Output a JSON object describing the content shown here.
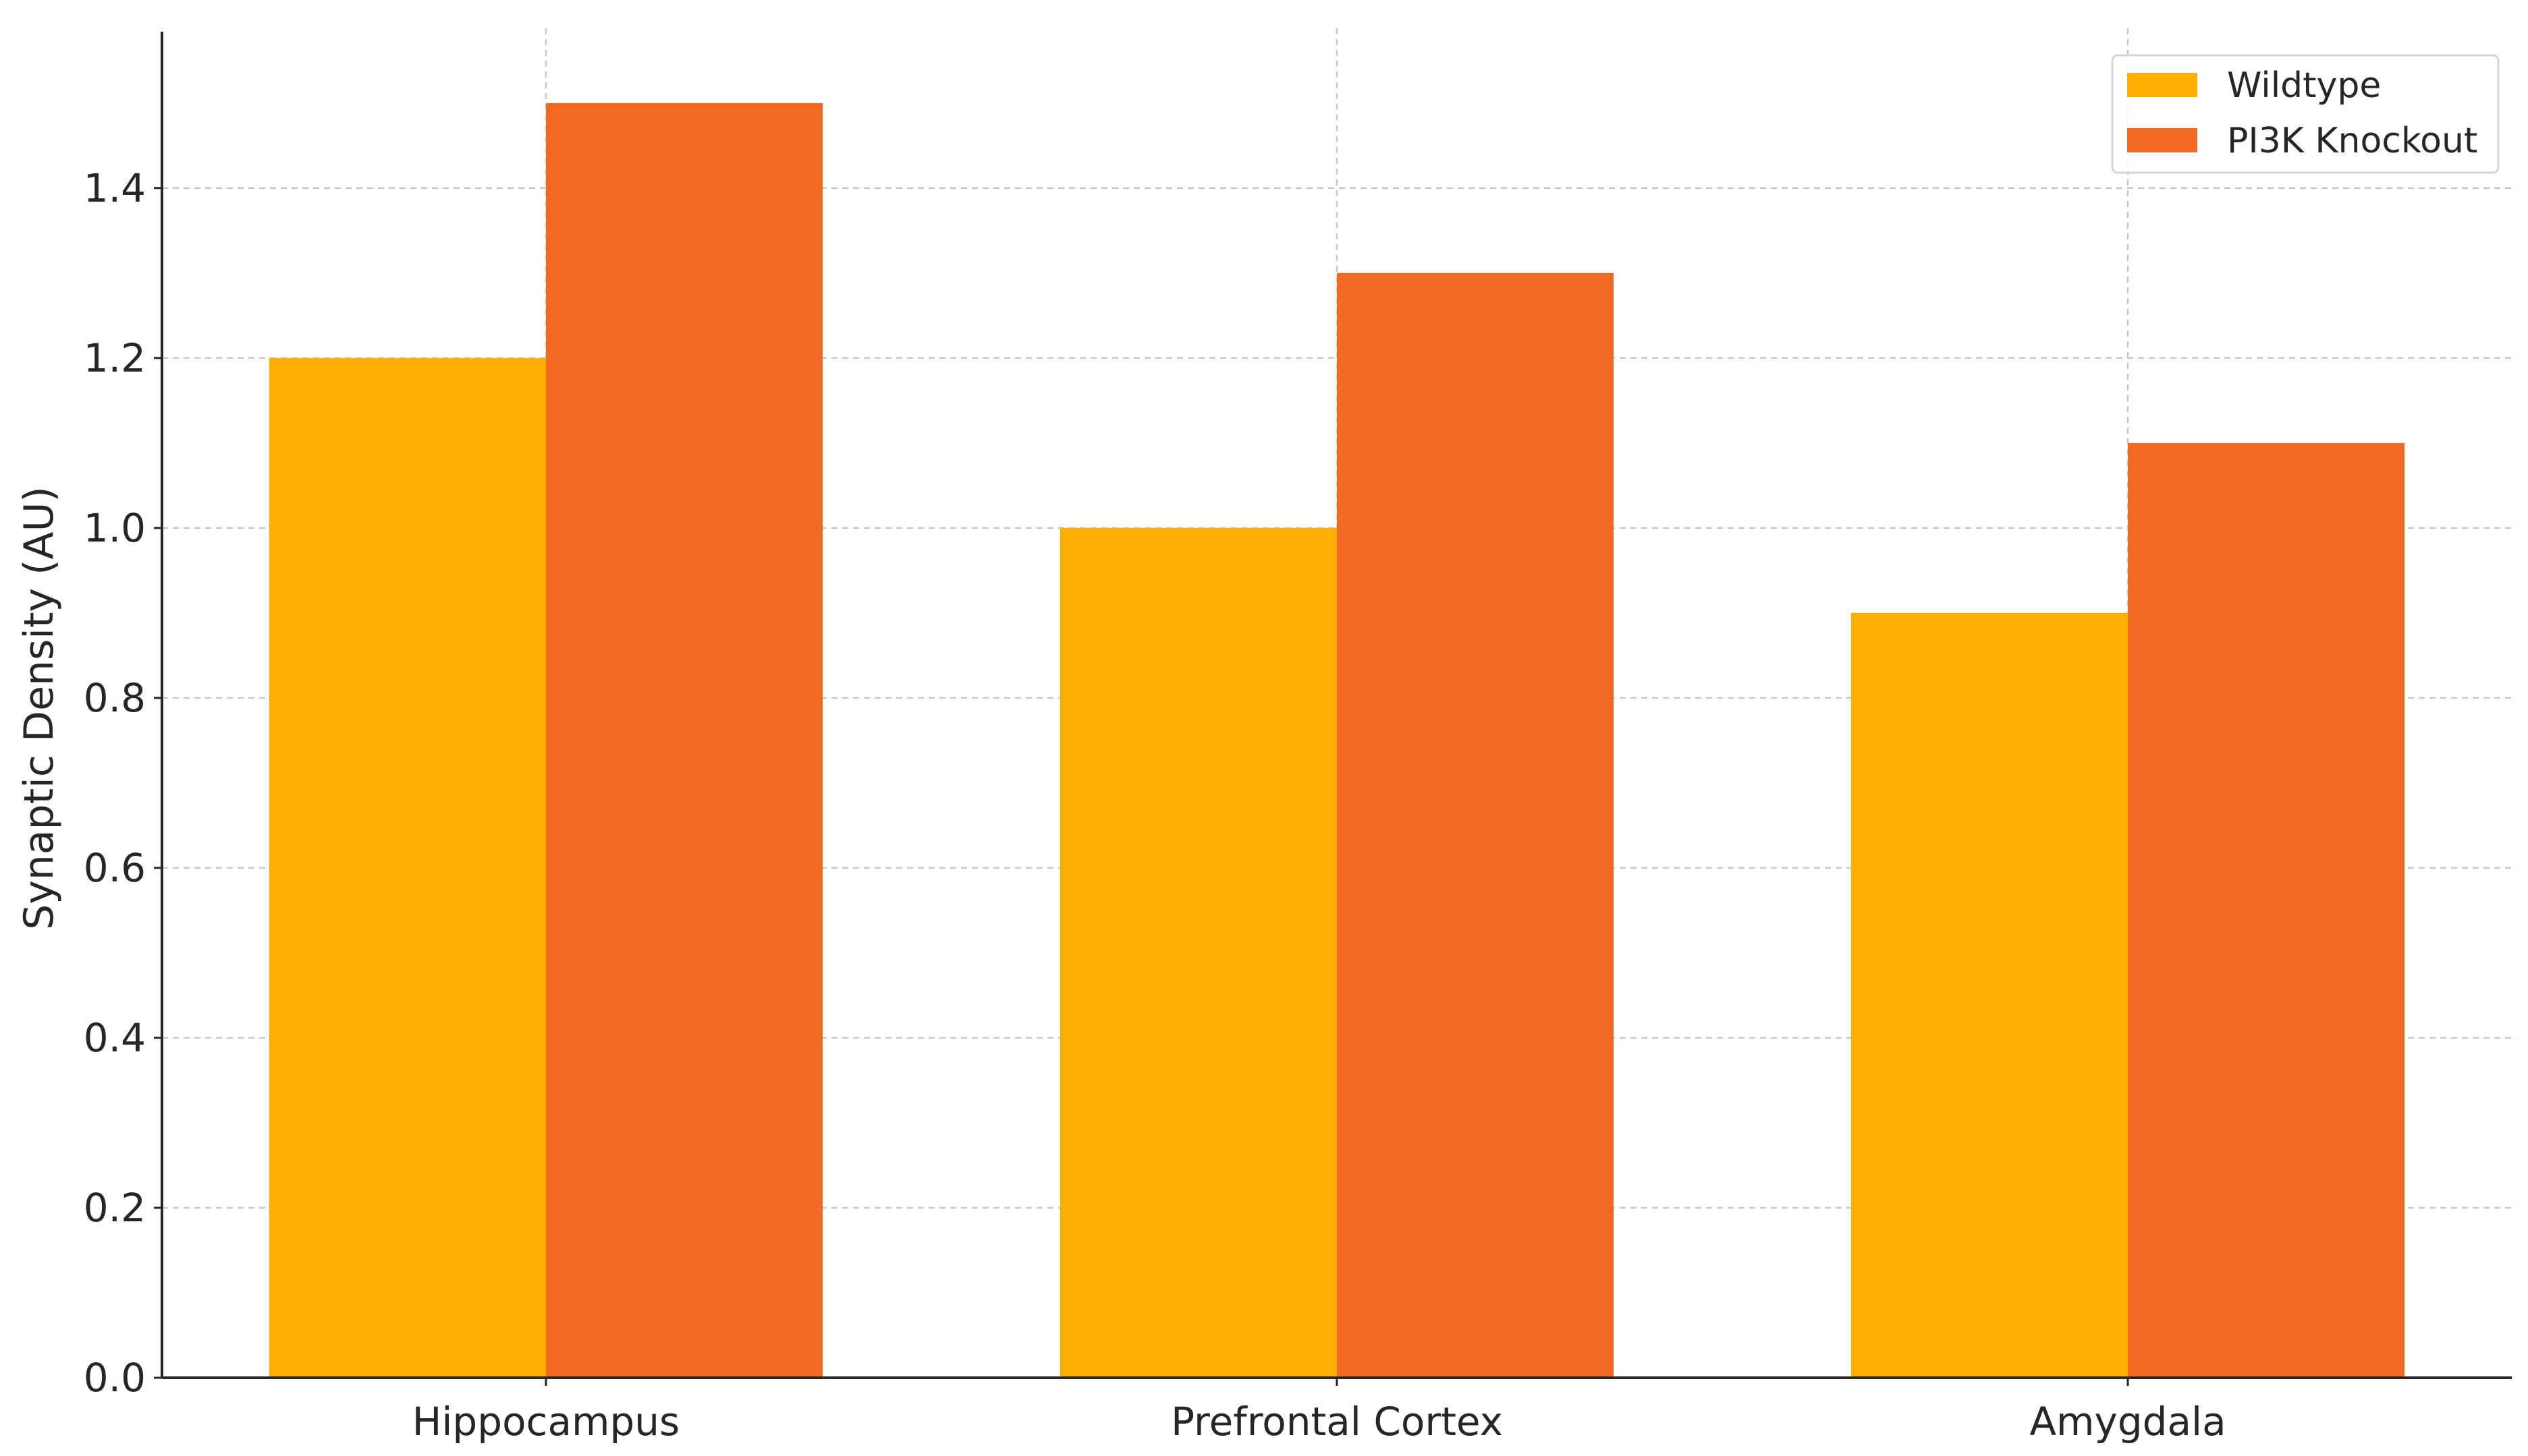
{
  "chart_data": {
    "type": "bar",
    "title": "",
    "xlabel": "",
    "ylabel": "Synaptic Density (AU)",
    "categories": [
      "Hippocampus",
      "Prefrontal Cortex",
      "Amygdala"
    ],
    "series": [
      {
        "name": "Wildtype",
        "values": [
          1.2,
          1.0,
          0.9
        ],
        "color": "#FCAE03"
      },
      {
        "name": "PI3K Knockout",
        "values": [
          1.5,
          1.3,
          1.1
        ],
        "color": "#F26A21"
      }
    ],
    "ylim": [
      0,
      1.58
    ],
    "yticks": [
      0.0,
      0.2,
      0.4,
      0.6,
      0.8,
      1.0,
      1.2,
      1.4
    ],
    "ytick_labels": [
      "0.0",
      "0.2",
      "0.4",
      "0.6",
      "0.8",
      "1.0",
      "1.2",
      "1.4"
    ],
    "grid": true,
    "grid_style": "dashed",
    "legend_position": "top-right"
  }
}
